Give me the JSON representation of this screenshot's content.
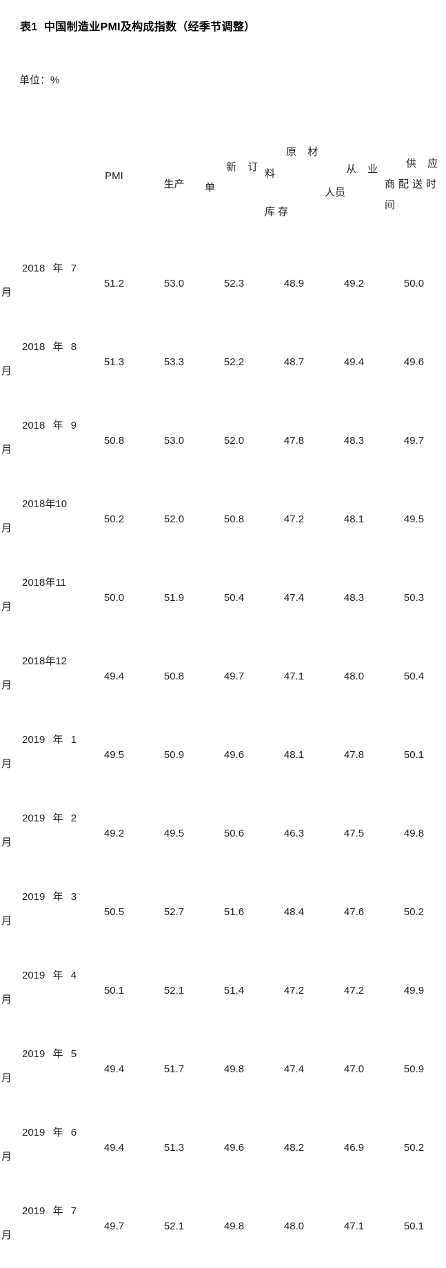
{
  "page": {
    "title": "表1  中国制造业PMI及构成指数（经季节调整）",
    "unit_label": "单位：%",
    "text_color": "#222222",
    "background_color": "#ffffff"
  },
  "table": {
    "header": [
      {
        "label": "PMI",
        "lines": [
          "PMI"
        ]
      },
      {
        "label": "生产",
        "lines": [
          "生产"
        ]
      },
      {
        "label": "新订单",
        "lines": [
          "新 订",
          "单"
        ]
      },
      {
        "label": "原材料库存",
        "lines": [
          "原 材",
          "料",
          "库存"
        ]
      },
      {
        "label": "从业人员",
        "lines": [
          "从 业",
          "人员"
        ]
      },
      {
        "label": "供应商配送时间",
        "lines": [
          "供 应",
          "商配送时",
          "间"
        ]
      }
    ],
    "rows": [
      {
        "month": "2018年7月",
        "month_lines": [
          "2018 年 7",
          "月"
        ],
        "values": [
          "51.2",
          "53.0",
          "52.3",
          "48.9",
          "49.2",
          "50.0"
        ]
      },
      {
        "month": "2018年8月",
        "month_lines": [
          "2018 年 8",
          "月"
        ],
        "values": [
          "51.3",
          "53.3",
          "52.2",
          "48.7",
          "49.4",
          "49.6"
        ]
      },
      {
        "month": "2018年9月",
        "month_lines": [
          "2018 年 9",
          "月"
        ],
        "values": [
          "50.8",
          "53.0",
          "52.0",
          "47.8",
          "48.3",
          "49.7"
        ]
      },
      {
        "month": "2018年10月",
        "month_lines": [
          "2018年10",
          "月"
        ],
        "values": [
          "50.2",
          "52.0",
          "50.8",
          "47.2",
          "48.1",
          "49.5"
        ]
      },
      {
        "month": "2018年11月",
        "month_lines": [
          "2018年11",
          "月"
        ],
        "values": [
          "50.0",
          "51.9",
          "50.4",
          "47.4",
          "48.3",
          "50.3"
        ]
      },
      {
        "month": "2018年12月",
        "month_lines": [
          "2018年12",
          "月"
        ],
        "values": [
          "49.4",
          "50.8",
          "49.7",
          "47.1",
          "48.0",
          "50.4"
        ]
      },
      {
        "month": "2019年1月",
        "month_lines": [
          "2019 年 1",
          "月"
        ],
        "values": [
          "49.5",
          "50.9",
          "49.6",
          "48.1",
          "47.8",
          "50.1"
        ]
      },
      {
        "month": "2019年2月",
        "month_lines": [
          "2019 年 2",
          "月"
        ],
        "values": [
          "49.2",
          "49.5",
          "50.6",
          "46.3",
          "47.5",
          "49.8"
        ]
      },
      {
        "month": "2019年3月",
        "month_lines": [
          "2019 年 3",
          "月"
        ],
        "values": [
          "50.5",
          "52.7",
          "51.6",
          "48.4",
          "47.6",
          "50.2"
        ]
      },
      {
        "month": "2019年4月",
        "month_lines": [
          "2019 年 4",
          "月"
        ],
        "values": [
          "50.1",
          "52.1",
          "51.4",
          "47.2",
          "47.2",
          "49.9"
        ]
      },
      {
        "month": "2019年5月",
        "month_lines": [
          "2019 年 5",
          "月"
        ],
        "values": [
          "49.4",
          "51.7",
          "49.8",
          "47.4",
          "47.0",
          "50.9"
        ]
      },
      {
        "month": "2019年6月",
        "month_lines": [
          "2019 年 6",
          "月"
        ],
        "values": [
          "49.4",
          "51.3",
          "49.6",
          "48.2",
          "46.9",
          "50.2"
        ]
      },
      {
        "month": "2019年7月",
        "month_lines": [
          "2019 年 7",
          "月"
        ],
        "values": [
          "49.7",
          "52.1",
          "49.8",
          "48.0",
          "47.1",
          "50.1"
        ]
      }
    ]
  }
}
